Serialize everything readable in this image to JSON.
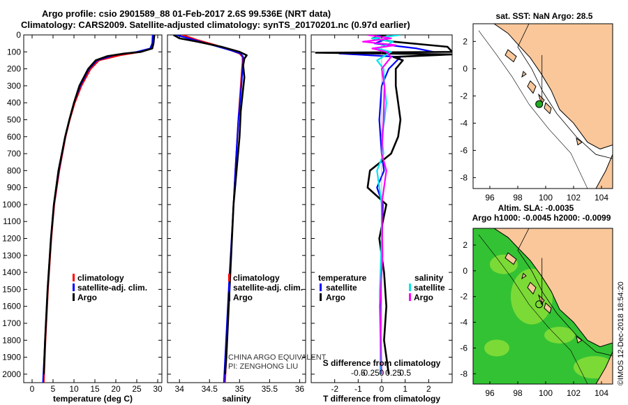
{
  "header": {
    "title_line1": "Argo profile: csio 2901589_88 01-Feb-2017 2.6S 99.536E (NRT data)",
    "title_line2": "Climatology: CARS2009. Satellite-adjusted climatology: synTS_20170201.nc (0.97d earlier)"
  },
  "colors": {
    "climatology": "#ff0000",
    "satellite": "#0000ff",
    "argo": "#000000",
    "salinity_satellite": "#00e5ee",
    "salinity_argo": "#ff00ff",
    "land": "#f9c79a",
    "sea_map1": "#ffffff",
    "sla_sea": "#33c233",
    "sla_high": "#b8ee3a"
  },
  "chart_data": [
    {
      "type": "line",
      "name": "temperature_profile",
      "xlabel": "temperature (deg C)",
      "ylabel": "",
      "xlim": [
        -2,
        31
      ],
      "ylim": [
        2050,
        0
      ],
      "xticks": [
        0,
        5,
        10,
        15,
        20,
        25,
        30
      ],
      "yticks": [
        0,
        100,
        200,
        300,
        400,
        500,
        600,
        700,
        800,
        900,
        1000,
        1100,
        1200,
        1300,
        1400,
        1500,
        1600,
        1700,
        1800,
        1900,
        2000
      ],
      "legend": [
        "climatology",
        "satellite-adj. clim.",
        "Argo"
      ],
      "legend_position": "bottom-right",
      "series": [
        {
          "name": "climatology",
          "color": "red",
          "depth": [
            0,
            50,
            80,
            100,
            120,
            150,
            200,
            300,
            400,
            500,
            600,
            800,
            1000,
            1200,
            1500,
            1800,
            2050
          ],
          "values": [
            29,
            28.9,
            28.5,
            26,
            21,
            16,
            14,
            11.8,
            10.2,
            9,
            8,
            6.5,
            5.3,
            4.6,
            3.8,
            3.2,
            2.8
          ]
        },
        {
          "name": "satellite-adj. clim.",
          "color": "blue",
          "depth": [
            0,
            50,
            80,
            100,
            120,
            150,
            200,
            300,
            400,
            500,
            600,
            800,
            1000,
            1200,
            1500,
            1800,
            2050
          ],
          "values": [
            28.8,
            28.7,
            28.2,
            25,
            19.5,
            15.5,
            13.6,
            11.5,
            10,
            8.9,
            7.9,
            6.4,
            5.2,
            4.5,
            3.7,
            3.1,
            2.6
          ]
        },
        {
          "name": "Argo",
          "color": "black",
          "depth": [
            0,
            50,
            80,
            100,
            110,
            125,
            150,
            200,
            300,
            400,
            500,
            600,
            800,
            1000,
            1200,
            1500,
            1800,
            2000
          ],
          "values": [
            29.2,
            29,
            28.7,
            26,
            22,
            18,
            15.2,
            13.4,
            11.3,
            10,
            8.9,
            7.9,
            6.3,
            5.2,
            4.5,
            3.7,
            3.1,
            2.8
          ]
        }
      ]
    },
    {
      "type": "line",
      "name": "salinity_profile",
      "xlabel": "salinity",
      "xlim": [
        33.8,
        36.1
      ],
      "ylim": [
        2050,
        0
      ],
      "xticks": [
        34,
        34.5,
        35,
        35.5,
        36
      ],
      "legend": [
        "climatology",
        "satellite-adj. clim.",
        "Argo"
      ],
      "legend_position": "bottom-right",
      "annotation": [
        "CHINA ARGO EQUIVALENT",
        "PI: ZENGHONG LIU"
      ],
      "series": [
        {
          "name": "climatology",
          "color": "red",
          "depth": [
            0,
            30,
            60,
            90,
            110,
            130,
            160,
            200,
            300,
            500,
            800,
            1000,
            1500,
            2050
          ],
          "values": [
            34.05,
            34.3,
            34.6,
            34.85,
            35,
            35.05,
            35.05,
            35.04,
            35.02,
            34.98,
            34.93,
            34.9,
            34.83,
            34.76
          ]
        },
        {
          "name": "satellite-adj. clim.",
          "color": "blue",
          "depth": [
            0,
            30,
            60,
            90,
            110,
            130,
            160,
            200,
            300,
            500,
            800,
            1000,
            1500,
            2050
          ],
          "values": [
            33.95,
            34.25,
            34.55,
            34.85,
            35.02,
            35.06,
            35.06,
            35.05,
            35.03,
            34.98,
            34.93,
            34.9,
            34.82,
            34.74
          ]
        },
        {
          "name": "Argo",
          "color": "black",
          "depth": [
            0,
            20,
            40,
            70,
            100,
            120,
            140,
            180,
            250,
            350,
            450,
            600,
            800,
            1000,
            1300,
            1600,
            1900,
            2000
          ],
          "values": [
            33.9,
            34.0,
            34.3,
            34.7,
            35.0,
            35.12,
            35.08,
            35.06,
            35.08,
            35.05,
            35.02,
            35.0,
            34.95,
            34.9,
            34.86,
            34.82,
            34.78,
            34.76
          ]
        }
      ]
    },
    {
      "type": "line",
      "name": "difference_profile",
      "xlabel": "T difference from climatology",
      "xlabel_top": "S difference from climatology",
      "xlim": [
        -3,
        3
      ],
      "ylim": [
        2050,
        0
      ],
      "xticks": [
        -2,
        -1,
        0,
        1,
        2
      ],
      "xticks_s": [
        "-0.5",
        "-0.25",
        "0",
        "0.25",
        "0.5"
      ],
      "legend_title_t": "temperature",
      "legend_title_s": "salinity",
      "legend_t": [
        "satellite",
        "Argo"
      ],
      "legend_s": [
        "satellite",
        "Argo"
      ],
      "series": [
        {
          "name": "temperature satellite",
          "color": "blue",
          "depth": [
            0,
            20,
            50,
            80,
            100,
            110,
            130,
            200,
            300,
            500,
            700,
            800,
            900,
            1000,
            1300,
            1600,
            2000
          ],
          "values": [
            -0.2,
            0.3,
            -0.3,
            1.5,
            2.2,
            -1.8,
            0.8,
            0.3,
            0,
            -0.1,
            0,
            0.1,
            -0.2,
            0.05,
            0,
            -0.05,
            -0.05
          ]
        },
        {
          "name": "temperature Argo",
          "color": "black",
          "depth": [
            0,
            20,
            40,
            70,
            100,
            105,
            115,
            130,
            150,
            200,
            300,
            400,
            500,
            600,
            700,
            800,
            900,
            1000,
            1200,
            1400,
            1600,
            1800,
            2000
          ],
          "values": [
            0.2,
            -0.4,
            0.5,
            2.8,
            3.0,
            -2.8,
            3.0,
            0.5,
            0.9,
            0.6,
            0.6,
            0.7,
            0.8,
            0.7,
            0.4,
            -0.5,
            -0.6,
            0.2,
            -0.1,
            0.1,
            0.2,
            0.1,
            0.3
          ]
        },
        {
          "name": "salinity satellite",
          "color": "cyan",
          "depth": [
            0,
            20,
            40,
            60,
            80,
            100,
            150,
            200,
            300,
            400,
            500,
            600,
            700,
            800,
            1000,
            1200,
            1500,
            2000
          ],
          "values": [
            0.2,
            -0.1,
            0.12,
            0.05,
            -0.05,
            0.1,
            -0.05,
            0.02,
            0.03,
            0.05,
            0.03,
            0.0,
            0.02,
            -0.05,
            0.0,
            0.0,
            -0.02,
            -0.01
          ]
        },
        {
          "name": "salinity Argo",
          "color": "magenta",
          "depth": [
            0,
            20,
            40,
            60,
            80,
            100,
            130,
            200,
            300,
            500,
            700,
            800,
            1000,
            1300,
            1600,
            2000
          ],
          "values": [
            -0.15,
            0.1,
            -0.2,
            0.15,
            -0.1,
            0.05,
            0.1,
            0.0,
            0.03,
            0.02,
            0.0,
            0.05,
            0.0,
            0.01,
            -0.02,
            0.0
          ]
        }
      ]
    },
    {
      "type": "map",
      "name": "sst_map",
      "title": "sat. SST: NaN Argo: 28.5",
      "xlim": [
        94.8,
        104.8
      ],
      "ylim": [
        -8.8,
        3.3
      ],
      "xticks": [
        96,
        98,
        100,
        102,
        104
      ],
      "yticks": [
        2,
        0,
        -2,
        -4,
        -6,
        -8
      ],
      "float_lon": 99.536,
      "float_lat": -2.6
    },
    {
      "type": "map",
      "name": "sla_map",
      "title": "Altim. SLA: -0.0035",
      "subtitle": "Argo h1000: -0.0045 h2000: -0.0099",
      "xlim": [
        94.8,
        104.8
      ],
      "ylim": [
        -8.8,
        3.3
      ],
      "xticks": [
        96,
        98,
        100,
        102,
        104
      ],
      "yticks": [
        2,
        0,
        -2,
        -4,
        -6,
        -8
      ],
      "float_lon": 99.536,
      "float_lat": -2.6
    }
  ],
  "credit": "©IMOS 12-Dec-2018 18:54:20"
}
